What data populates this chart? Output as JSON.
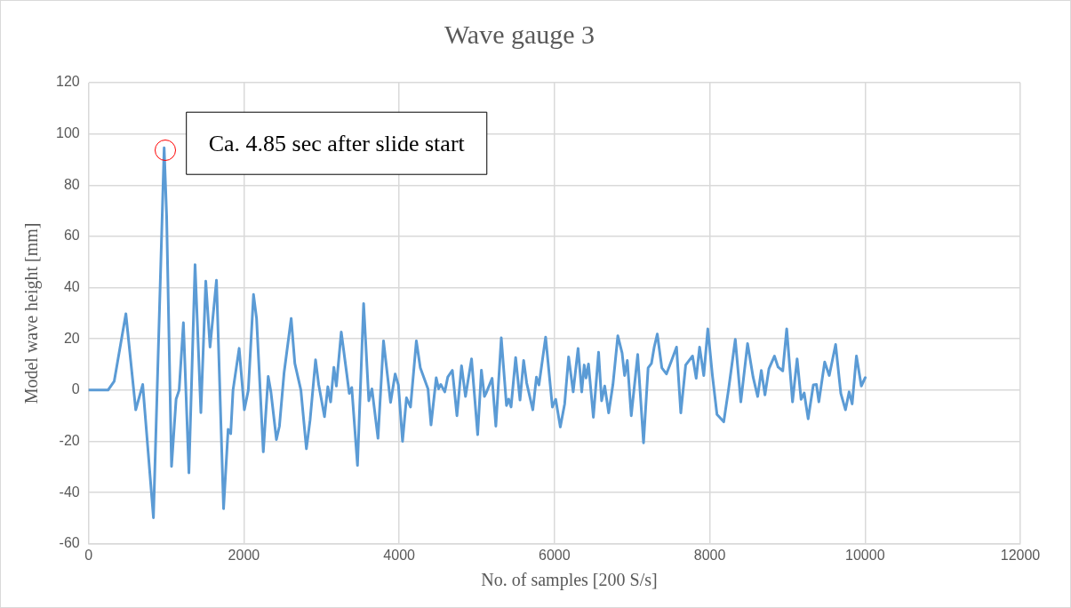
{
  "chart_data": {
    "type": "line",
    "title": "Wave gauge 3",
    "xlabel": "No. of samples [200 S/s]",
    "ylabel": "Model wave height [mm]",
    "xlim": [
      0,
      12000
    ],
    "xticks": [
      0,
      2000,
      4000,
      6000,
      8000,
      10000,
      12000
    ],
    "ylim": [
      -60,
      120
    ],
    "yticks": [
      -60,
      -40,
      -20,
      0,
      20,
      40,
      60,
      80,
      100,
      120
    ],
    "grid": true,
    "legend": false,
    "marker": "none",
    "line_style": "solid",
    "annotations": [
      {
        "text": "Ca. 4.85 sec after slide start",
        "x": 973,
        "y": 94.6
      }
    ],
    "series": [
      {
        "color": "#5b9bd5",
        "x": [
          0,
          250,
          330,
          480,
          607,
          697,
          835,
          914,
          973,
          1005,
          1068,
          1127,
          1166,
          1221,
          1292,
          1371,
          1446,
          1509,
          1564,
          1647,
          1738,
          1797,
          1830,
          1860,
          1939,
          2006,
          2057,
          2124,
          2163,
          2250,
          2313,
          2348,
          2419,
          2458,
          2518,
          2609,
          2656,
          2734,
          2805,
          2852,
          2923,
          2963,
          3038,
          3081,
          3117,
          3159,
          3191,
          3254,
          3325,
          3357,
          3389,
          3463,
          3542,
          3609,
          3649,
          3727,
          3798,
          3889,
          3948,
          3990,
          4043,
          4094,
          4146,
          4221,
          4272,
          4371,
          4410,
          4477,
          4508,
          4536,
          4587,
          4626,
          4685,
          4744,
          4803,
          4854,
          4932,
          5011,
          5059,
          5098,
          5118,
          5197,
          5245,
          5315,
          5382,
          5410,
          5441,
          5500,
          5556,
          5603,
          5642,
          5721,
          5768,
          5800,
          5886,
          5973,
          6016,
          6075,
          6131,
          6182,
          6241,
          6304,
          6351,
          6383,
          6407,
          6438,
          6501,
          6568,
          6607,
          6647,
          6698,
          6753,
          6816,
          6871,
          6903,
          6938,
          6989,
          7072,
          7147,
          7206,
          7249,
          7284,
          7324,
          7383,
          7442,
          7501,
          7572,
          7627,
          7690,
          7778,
          7825,
          7869,
          7923,
          7975,
          8034,
          8093,
          8180,
          8243,
          8329,
          8400,
          8487,
          8558,
          8617,
          8664,
          8711,
          8762,
          8833,
          8880,
          8940,
          8991,
          9066,
          9125,
          9176,
          9216,
          9267,
          9334,
          9374,
          9405,
          9480,
          9539,
          9621,
          9688,
          9748,
          9795,
          9834,
          9889,
          9952,
          10003
        ],
        "values": [
          0,
          0,
          3.5,
          29.8,
          -7.7,
          2.2,
          -49.8,
          32.6,
          94.6,
          67.7,
          -29.8,
          -3.5,
          0,
          26.3,
          -32.3,
          49,
          -8.8,
          42.5,
          16.8,
          42.9,
          -46.3,
          -15.3,
          -17,
          0,
          16.3,
          -7.7,
          0,
          37.3,
          28,
          -24.1,
          5.3,
          -0.7,
          -19.3,
          -14,
          6.9,
          28,
          10.4,
          0,
          -22.9,
          -11.8,
          11.8,
          2.2,
          -10.4,
          1.3,
          -4.6,
          8.9,
          1.6,
          22.7,
          6.3,
          -1.3,
          1,
          -29.4,
          33.8,
          -4.2,
          0.5,
          -18.8,
          19.2,
          -4.8,
          6.3,
          2,
          -20,
          -3,
          -6.6,
          19.2,
          8.7,
          0.5,
          -13.6,
          4.8,
          0.5,
          2.2,
          -0.7,
          5.1,
          7.7,
          -10,
          9.5,
          -2.5,
          12.2,
          -17.4,
          7.8,
          -2.5,
          -1.3,
          4.6,
          -14.1,
          20.4,
          -6,
          -3.5,
          -6.6,
          12.7,
          -3.9,
          11.6,
          2.8,
          -7.7,
          5.1,
          2,
          20.7,
          -6.6,
          -3.6,
          -14.4,
          -5.4,
          13,
          -0.7,
          16.3,
          -0.7,
          9.8,
          4.7,
          10.2,
          -10.6,
          14.8,
          -4.2,
          1.6,
          -8.9,
          2.2,
          21.2,
          14.5,
          5.7,
          11.6,
          -10,
          13.9,
          -20.6,
          8.7,
          10.4,
          16.7,
          21.9,
          8.7,
          6.3,
          11,
          16.8,
          -8.9,
          9.8,
          13.3,
          4.6,
          16.8,
          5.7,
          23.9,
          5.7,
          -9.5,
          -12.4,
          0.5,
          19.8,
          -4.6,
          18.2,
          5.1,
          -2.5,
          7.7,
          -1.9,
          8.3,
          13.3,
          9,
          7.5,
          23.9,
          -4.6,
          12.2,
          -3.6,
          -1.1,
          -11.2,
          2,
          2.2,
          -4.6,
          11,
          5.7,
          17.8,
          -1.3,
          -7.7,
          -0.7,
          -5.4,
          13.3,
          1.6,
          4.9
        ]
      }
    ]
  }
}
